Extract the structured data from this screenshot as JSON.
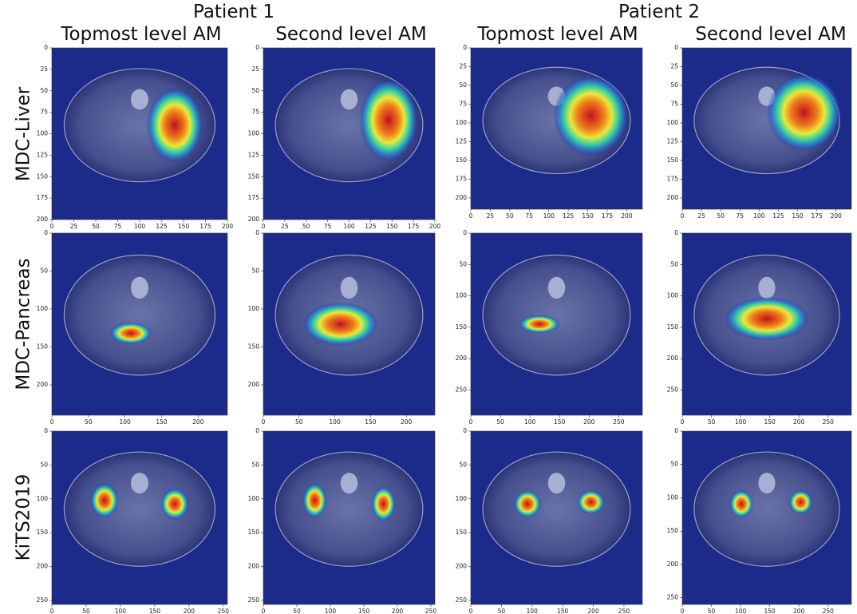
{
  "header": {
    "patients": [
      "Patient 1",
      "Patient 2"
    ],
    "columns": [
      "Topmost level AM",
      "Second level AM",
      "Topmost level AM",
      "Second level AM"
    ]
  },
  "rows": [
    {
      "label": "MDC-Liver",
      "panels": [
        {
          "xlim": [
            0,
            200
          ],
          "ylim": [
            0,
            200
          ],
          "xticks": [
            0,
            25,
            50,
            75,
            100,
            125,
            150,
            175,
            200
          ],
          "yticks": [
            0,
            25,
            50,
            75,
            100,
            125,
            150,
            175,
            200
          ]
        },
        {
          "xlim": [
            0,
            200
          ],
          "ylim": [
            0,
            200
          ],
          "xticks": [
            0,
            25,
            50,
            75,
            100,
            125,
            150,
            175,
            200
          ],
          "yticks": [
            0,
            25,
            50,
            75,
            100,
            125,
            150,
            175,
            200
          ]
        },
        {
          "xlim": [
            0,
            220
          ],
          "ylim": [
            0,
            215
          ],
          "xticks": [
            0,
            25,
            50,
            75,
            100,
            125,
            150,
            175,
            200
          ],
          "yticks": [
            0,
            25,
            50,
            75,
            100,
            125,
            150,
            175,
            200
          ]
        },
        {
          "xlim": [
            0,
            220
          ],
          "ylim": [
            0,
            215
          ],
          "xticks": [
            0,
            25,
            50,
            75,
            100,
            125,
            150,
            175,
            200
          ],
          "yticks": [
            0,
            25,
            50,
            75,
            100,
            125,
            150,
            175,
            200
          ]
        }
      ]
    },
    {
      "label": "MDC-Pancreas",
      "panels": [
        {
          "xlim": [
            0,
            240
          ],
          "ylim": [
            0,
            240
          ],
          "xticks": [
            0,
            50,
            100,
            150,
            200
          ],
          "yticks": [
            0,
            50,
            100,
            150,
            200
          ]
        },
        {
          "xlim": [
            0,
            240
          ],
          "ylim": [
            0,
            240
          ],
          "xticks": [
            0,
            50,
            100,
            150,
            200
          ],
          "yticks": [
            0,
            50,
            100,
            150,
            200
          ]
        },
        {
          "xlim": [
            0,
            290
          ],
          "ylim": [
            0,
            290
          ],
          "xticks": [
            0,
            50,
            100,
            150,
            200,
            250
          ],
          "yticks": [
            0,
            50,
            100,
            150,
            200,
            250
          ]
        },
        {
          "xlim": [
            0,
            290
          ],
          "ylim": [
            0,
            290
          ],
          "xticks": [
            0,
            50,
            100,
            150,
            200,
            250
          ],
          "yticks": [
            0,
            50,
            100,
            150,
            200,
            250
          ]
        }
      ]
    },
    {
      "label": "KiTS2019",
      "panels": [
        {
          "xlim": [
            0,
            256
          ],
          "ylim": [
            0,
            256
          ],
          "xticks": [
            0,
            50,
            100,
            150,
            200,
            250
          ],
          "yticks": [
            0,
            50,
            100,
            150,
            200,
            250
          ]
        },
        {
          "xlim": [
            0,
            256
          ],
          "ylim": [
            0,
            256
          ],
          "xticks": [
            0,
            50,
            100,
            150,
            200,
            250
          ],
          "yticks": [
            0,
            50,
            100,
            150,
            200,
            250
          ]
        },
        {
          "xlim": [
            0,
            280
          ],
          "ylim": [
            0,
            256
          ],
          "xticks": [
            0,
            50,
            100,
            150,
            200,
            250
          ],
          "yticks": [
            0,
            50,
            100,
            150,
            200,
            250
          ]
        },
        {
          "xlim": [
            0,
            290
          ],
          "ylim": [
            0,
            260
          ],
          "xticks": [
            0,
            50,
            100,
            150,
            200,
            250
          ],
          "yticks": [
            0,
            50,
            100,
            150,
            200,
            250
          ]
        }
      ]
    }
  ]
}
